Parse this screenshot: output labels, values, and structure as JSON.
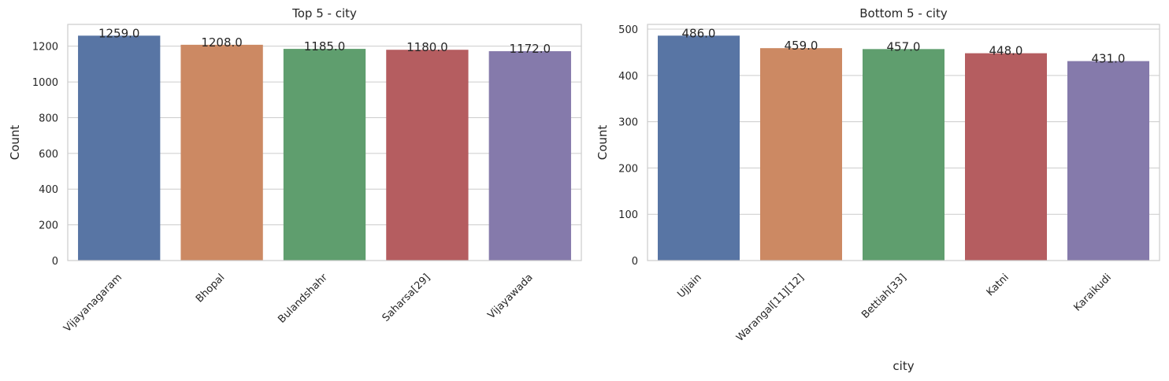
{
  "chart_data": [
    {
      "type": "bar",
      "title": "Top 5  - city",
      "xlabel": "",
      "ylabel": "Count",
      "categories": [
        "Vijayanagaram",
        "Bhopal",
        "Bulandshahr",
        "Saharsa[29]",
        "Vijayawada"
      ],
      "values": [
        1259.0,
        1208.0,
        1185.0,
        1180.0,
        1172.0
      ],
      "value_labels": [
        "1259.0",
        "1208.0",
        "1185.0",
        "1180.0",
        "1172.0"
      ],
      "ylim": [
        0,
        1322
      ],
      "yticks": [
        0,
        200,
        400,
        600,
        800,
        1000,
        1200
      ],
      "colors": [
        "#5875a4",
        "#cc8963",
        "#5f9e6e",
        "#b55d60",
        "#857aab"
      ],
      "grid": "horizontal"
    },
    {
      "type": "bar",
      "title": "Bottom 5  - city",
      "xlabel": "city",
      "ylabel": "Count",
      "categories": [
        "Ujjain",
        "Warangal[11][12]",
        "Bettiah[33]",
        "Katni",
        "Karaikudi"
      ],
      "values": [
        486.0,
        459.0,
        457.0,
        448.0,
        431.0
      ],
      "value_labels": [
        "486.0",
        "459.0",
        "457.0",
        "448.0",
        "431.0"
      ],
      "ylim": [
        0,
        510.3
      ],
      "yticks": [
        0,
        100,
        200,
        300,
        400,
        500
      ],
      "colors": [
        "#5875a4",
        "#cc8963",
        "#5f9e6e",
        "#b55d60",
        "#857aab"
      ],
      "grid": "horizontal"
    }
  ]
}
